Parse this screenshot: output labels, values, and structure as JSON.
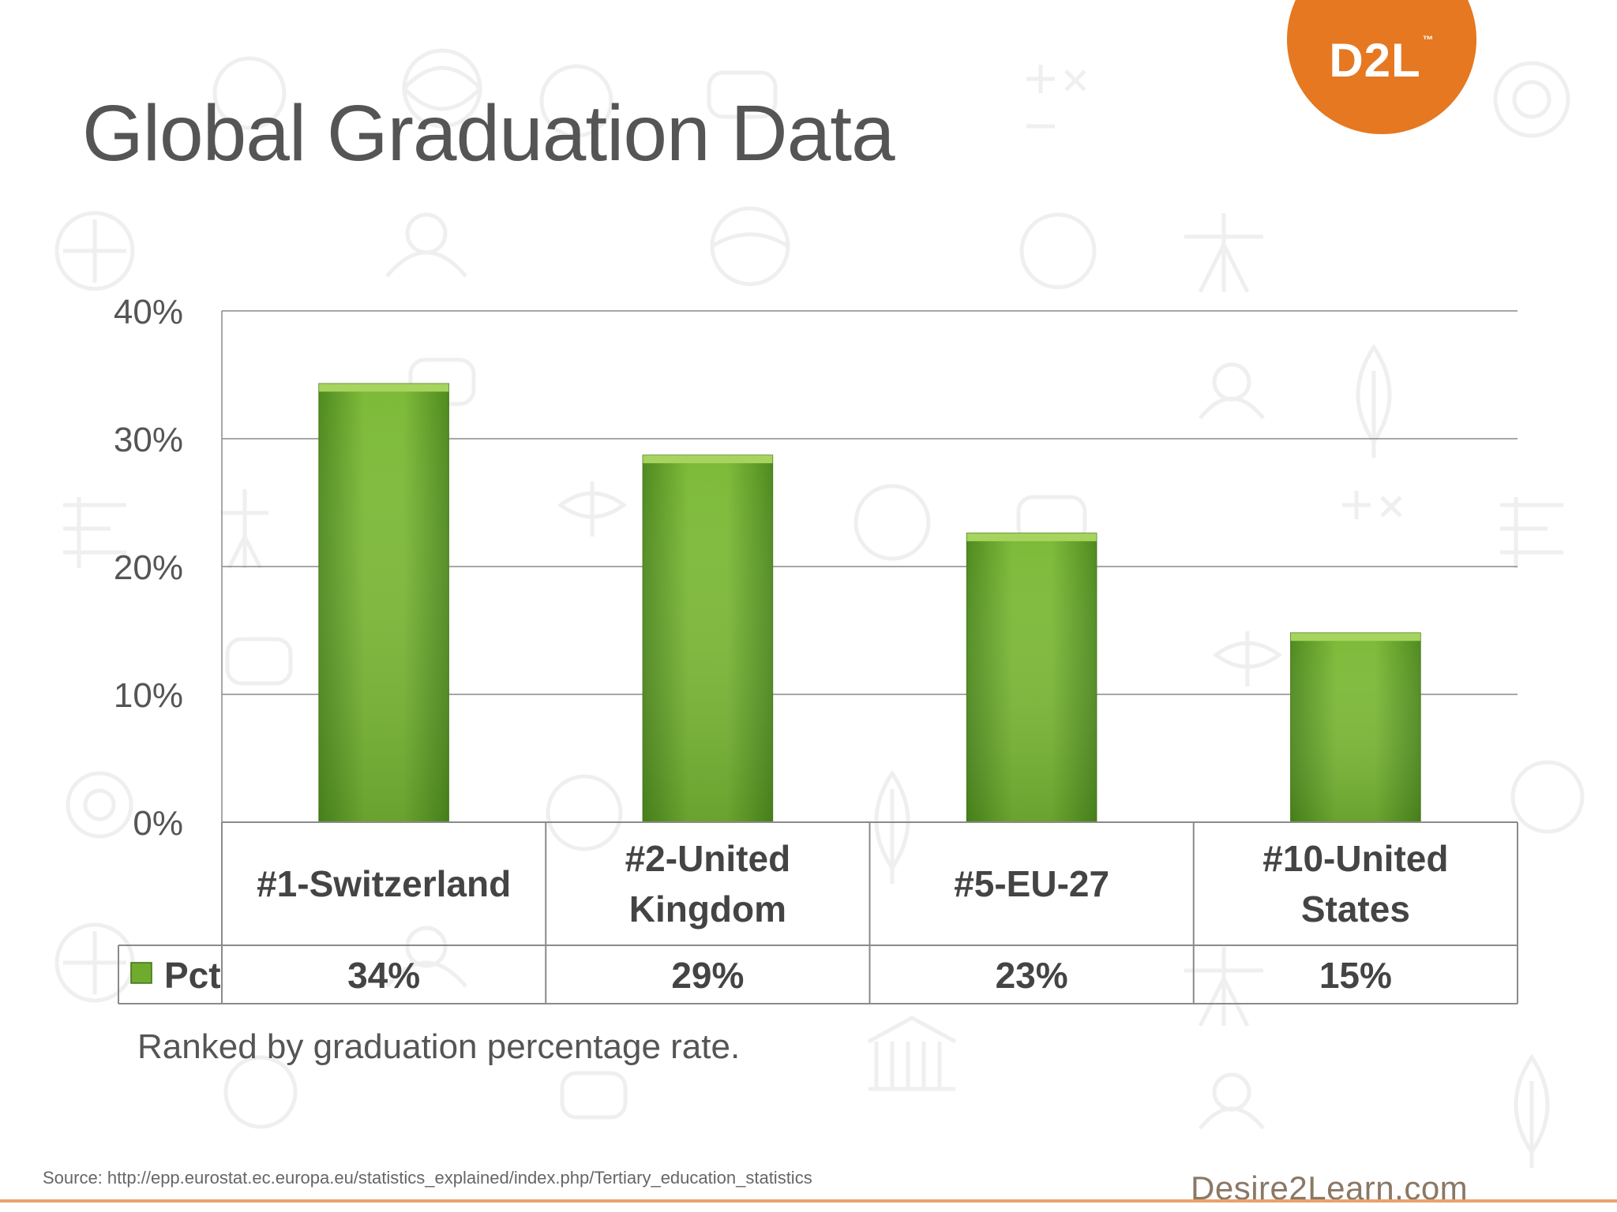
{
  "slide": {
    "title": "Global Graduation Data",
    "caption": "Ranked by graduation percentage rate.",
    "source": "Source:  http://epp.eurostat.ec.europa.eu/statistics_explained/index.php/Tertiary_education_statistics",
    "footer_brand": "Desire2Learn.com",
    "logo": {
      "text": "D2L",
      "trademark": "™"
    }
  },
  "colors": {
    "brand_orange": "#e57820",
    "bar_green": "#6fac2e",
    "bar_green_light": "#8ac43e",
    "bar_green_dark": "#4e8a1e",
    "text_gray": "#555555"
  },
  "chart_data": {
    "type": "bar",
    "categories": [
      [
        "#1-Switzerland"
      ],
      [
        "#2-United",
        "Kingdom"
      ],
      [
        "#5-EU-27"
      ],
      [
        "#10-United",
        "States"
      ]
    ],
    "series": [
      {
        "name": "Pct",
        "values": [
          34.3,
          28.7,
          22.6,
          14.8
        ],
        "color": "#6fac2e"
      }
    ],
    "data_table_labels": [
      "34%",
      "29%",
      "23%",
      "15%"
    ],
    "y_ticks": [
      "0%",
      "10%",
      "20%",
      "30%",
      "40%"
    ],
    "y_tick_values": [
      0,
      10,
      20,
      30,
      40
    ],
    "ylim": [
      0,
      40
    ],
    "grid": true,
    "legend_placement": "data-table"
  }
}
